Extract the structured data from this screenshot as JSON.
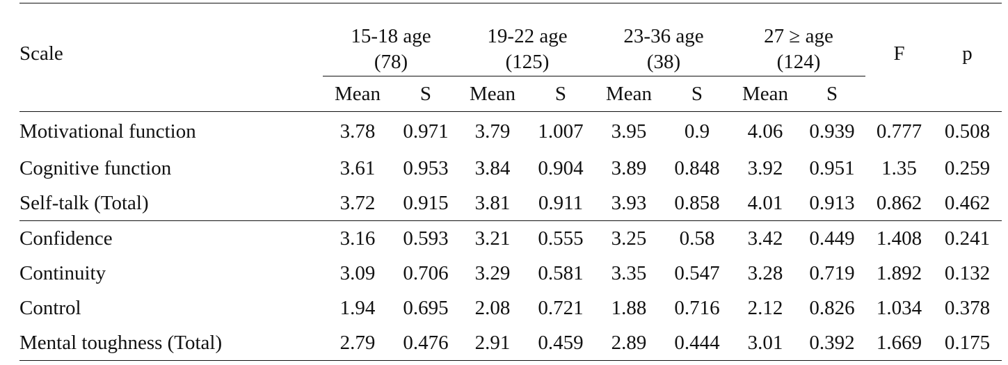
{
  "table": {
    "scale_label": "Scale",
    "groups": [
      {
        "title": "15-18 age",
        "n": "(78)"
      },
      {
        "title": "19-22 age",
        "n": "(125)"
      },
      {
        "title": "23-36 age",
        "n": "(38)"
      },
      {
        "title": "27 ≥ age",
        "n": "(124)"
      }
    ],
    "f_label": "F",
    "p_label": "p",
    "sub_headers": [
      "Mean",
      "S",
      "Mean",
      "S",
      "Mean",
      "S",
      "Mean",
      "S"
    ],
    "rows": [
      {
        "label": "Motivational function",
        "values": [
          "3.78",
          "0.971",
          "3.79",
          "1.007",
          "3.95",
          "0.9",
          "4.06",
          "0.939",
          "0.777",
          "0.508"
        ]
      },
      {
        "label": "Cognitive function",
        "values": [
          "3.61",
          "0.953",
          "3.84",
          "0.904",
          "3.89",
          "0.848",
          "3.92",
          "0.951",
          "1.35",
          "0.259"
        ]
      },
      {
        "label": "Self-talk (Total)",
        "values": [
          "3.72",
          "0.915",
          "3.81",
          "0.911",
          "3.93",
          "0.858",
          "4.01",
          "0.913",
          "0.862",
          "0.462"
        ]
      },
      {
        "label": "Confidence",
        "values": [
          "3.16",
          "0.593",
          "3.21",
          "0.555",
          "3.25",
          "0.58",
          "3.42",
          "0.449",
          "1.408",
          "0.241"
        ]
      },
      {
        "label": "Continuity",
        "values": [
          "3.09",
          "0.706",
          "3.29",
          "0.581",
          "3.35",
          "0.547",
          "3.28",
          "0.719",
          "1.892",
          "0.132"
        ]
      },
      {
        "label": "Control",
        "values": [
          "1.94",
          "0.695",
          "2.08",
          "0.721",
          "1.88",
          "0.716",
          "2.12",
          "0.826",
          "1.034",
          "0.378"
        ]
      },
      {
        "label": "Mental toughness (Total)",
        "values": [
          "2.79",
          "0.476",
          "2.91",
          "0.459",
          "2.89",
          "0.444",
          "3.01",
          "0.392",
          "1.669",
          "0.175"
        ]
      }
    ]
  }
}
